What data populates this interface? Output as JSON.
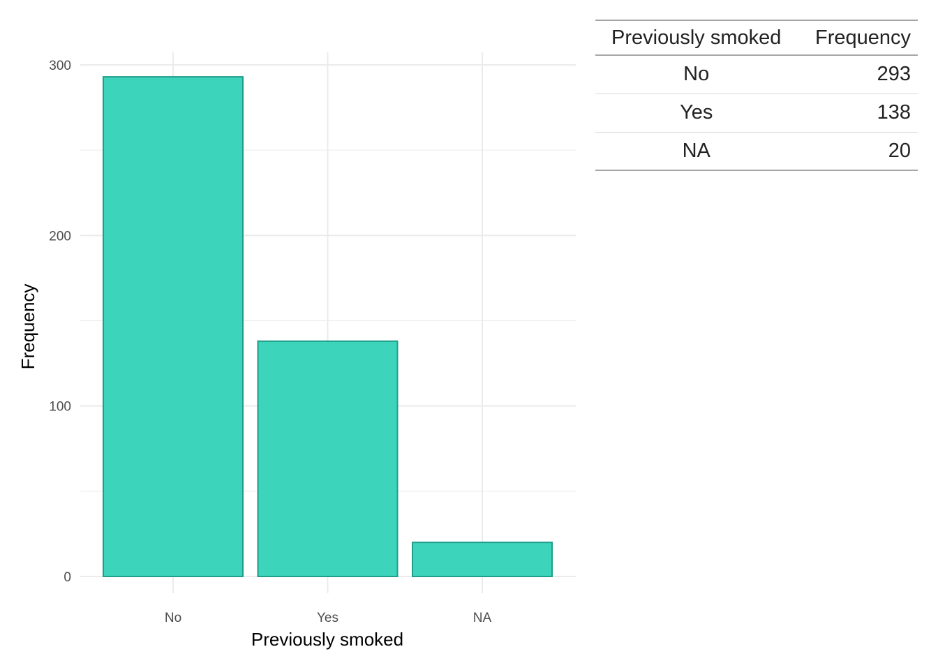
{
  "chart_data": {
    "type": "bar",
    "categories": [
      "No",
      "Yes",
      "NA"
    ],
    "values": [
      293,
      138,
      20
    ],
    "title": "",
    "xlabel": "Previously smoked",
    "ylabel": "Frequency",
    "ylim": [
      0,
      300
    ],
    "yticks": [
      0,
      100,
      200,
      300
    ],
    "grid": true,
    "colors": {
      "fill": "#3DD4BC",
      "stroke": "#1F9E8A",
      "grid": "#EBEBEB"
    }
  },
  "table": {
    "headers": [
      "Previously smoked",
      "Frequency"
    ],
    "rows": [
      [
        "No",
        "293"
      ],
      [
        "Yes",
        "138"
      ],
      [
        "NA",
        "20"
      ]
    ]
  }
}
